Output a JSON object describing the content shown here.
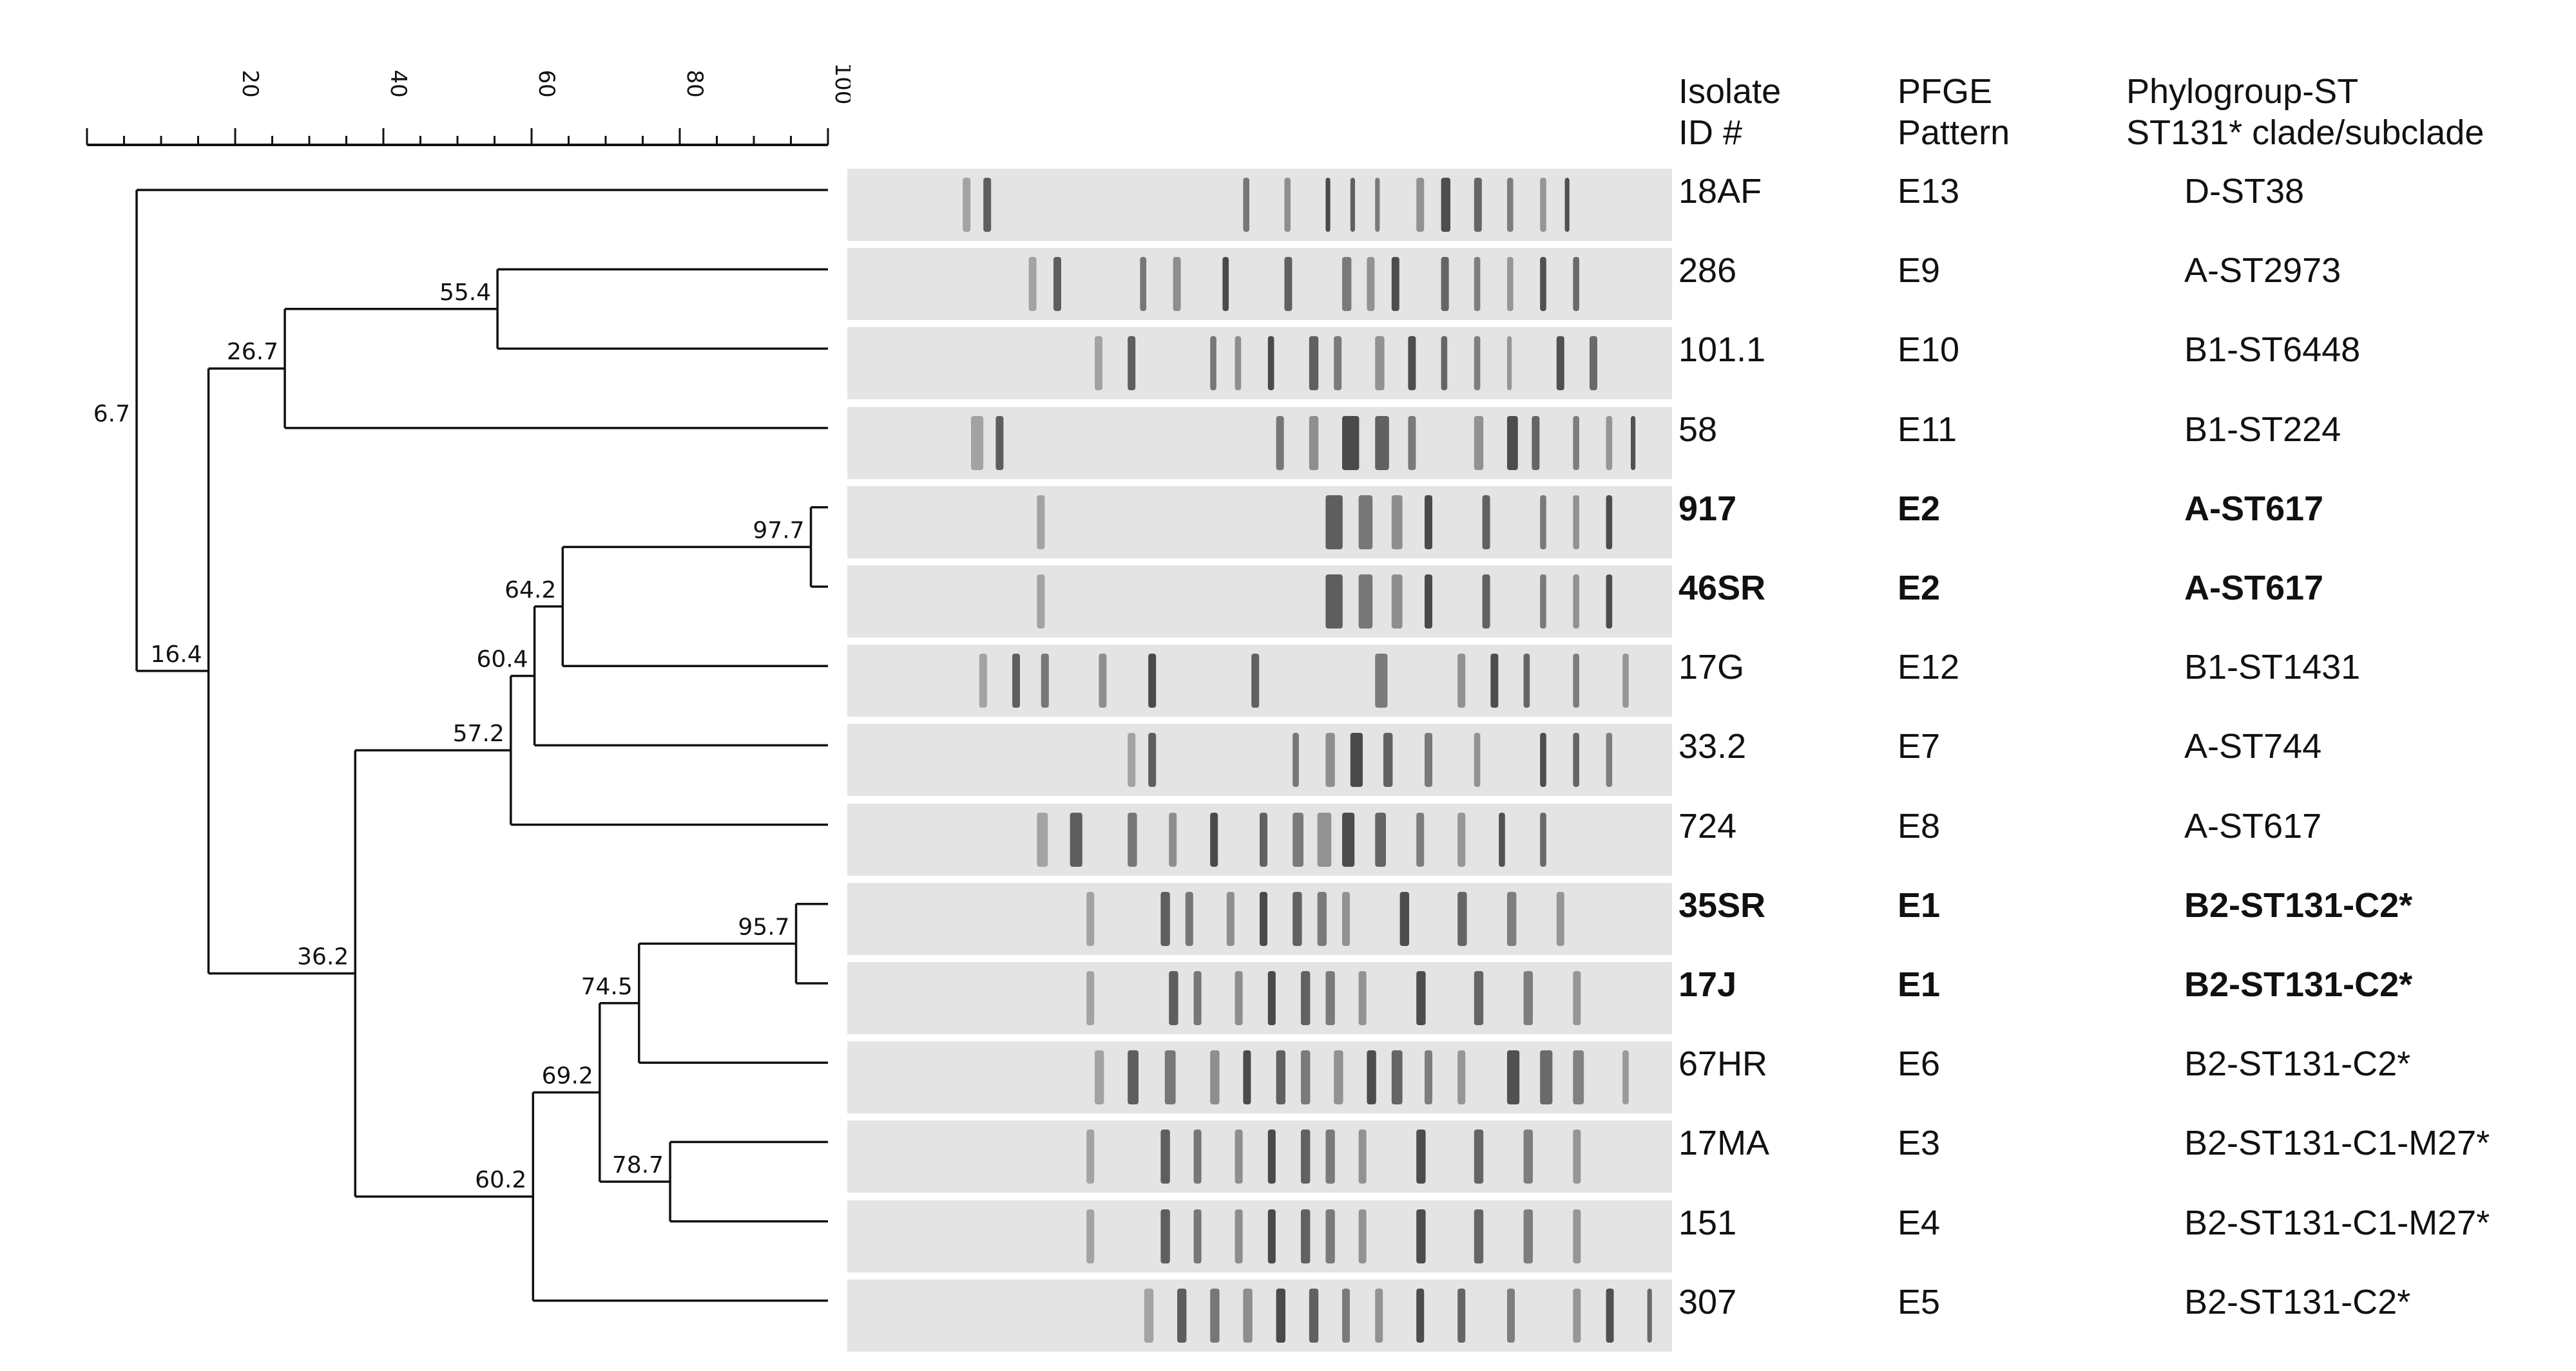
{
  "scale": {
    "min": 0,
    "max": 100,
    "tick_labels": [
      "20",
      "40",
      "60",
      "80",
      "100"
    ]
  },
  "headers": {
    "isolate": [
      "Isolate",
      "ID #"
    ],
    "pfge": [
      "PFGE",
      "Pattern"
    ],
    "phylo": [
      "Phylogroup-ST",
      "ST131* clade/subclade"
    ]
  },
  "isolates": [
    {
      "id": "18AF",
      "pfge": "E13",
      "phylo": "D-ST38",
      "bold": false
    },
    {
      "id": "286",
      "pfge": "E9",
      "phylo": "A-ST2973",
      "bold": false
    },
    {
      "id": "101.1",
      "pfge": "E10",
      "phylo": "B1-ST6448",
      "bold": false
    },
    {
      "id": "58",
      "pfge": "E11",
      "phylo": "B1-ST224",
      "bold": false
    },
    {
      "id": "917",
      "pfge": "E2",
      "phylo": "A-ST617",
      "bold": true
    },
    {
      "id": "46SR",
      "pfge": "E2",
      "phylo": "A-ST617",
      "bold": true
    },
    {
      "id": "17G",
      "pfge": "E12",
      "phylo": "B1-ST1431",
      "bold": false
    },
    {
      "id": "33.2",
      "pfge": "E7",
      "phylo": "A-ST744",
      "bold": false
    },
    {
      "id": "724",
      "pfge": "E8",
      "phylo": "A-ST617",
      "bold": false
    },
    {
      "id": "35SR",
      "pfge": "E1",
      "phylo": "B2-ST131-C2*",
      "bold": true
    },
    {
      "id": "17J",
      "pfge": "E1",
      "phylo": "B2-ST131-C2*",
      "bold": true
    },
    {
      "id": "67HR",
      "pfge": "E6",
      "phylo": "B2-ST131-C2*",
      "bold": false
    },
    {
      "id": "17MA",
      "pfge": "E3",
      "phylo": "B2-ST131-C1-M27*",
      "bold": false
    },
    {
      "id": "151",
      "pfge": "E4",
      "phylo": "B2-ST131-C1-M27*",
      "bold": false
    },
    {
      "id": "307",
      "pfge": "E5",
      "phylo": "B2-ST131-C2*",
      "bold": false
    }
  ],
  "tree": {
    "nodes": [
      {
        "id": "root",
        "similarity": 6.7,
        "label": "6.7",
        "children": [
          "L0",
          "n164"
        ]
      },
      {
        "id": "n164",
        "similarity": 16.4,
        "label": "16.4",
        "children": [
          "n267",
          "n362"
        ]
      },
      {
        "id": "n267",
        "similarity": 26.7,
        "label": "26.7",
        "children": [
          "n554",
          "L3"
        ]
      },
      {
        "id": "n554",
        "similarity": 55.4,
        "label": "55.4",
        "children": [
          "L1",
          "L2"
        ]
      },
      {
        "id": "n362",
        "similarity": 36.2,
        "label": "36.2",
        "children": [
          "n572",
          "n602"
        ]
      },
      {
        "id": "n572",
        "similarity": 57.2,
        "label": "57.2",
        "children": [
          "n604",
          "L8"
        ]
      },
      {
        "id": "n604",
        "similarity": 60.4,
        "label": "60.4",
        "children": [
          "n642",
          "L7"
        ]
      },
      {
        "id": "n642",
        "similarity": 64.2,
        "label": "64.2",
        "children": [
          "n977",
          "L6"
        ]
      },
      {
        "id": "n977",
        "similarity": 97.7,
        "label": "97.7",
        "children": [
          "L4",
          "L5"
        ]
      },
      {
        "id": "n602",
        "similarity": 60.2,
        "label": "60.2",
        "children": [
          "n692",
          "L14"
        ]
      },
      {
        "id": "n692",
        "similarity": 69.2,
        "label": "69.2",
        "children": [
          "n745",
          "n787"
        ]
      },
      {
        "id": "n745",
        "similarity": 74.5,
        "label": "74.5",
        "children": [
          "n957",
          "L11"
        ]
      },
      {
        "id": "n957",
        "similarity": 95.7,
        "label": "95.7",
        "children": [
          "L9",
          "L10"
        ]
      },
      {
        "id": "n787",
        "similarity": 78.7,
        "label": "78.7",
        "children": [
          "L12",
          "L13"
        ]
      }
    ]
  },
  "colors": {
    "line": "#111111",
    "gel_background": "#e4e4e4",
    "band": "#2a2a2a"
  }
}
